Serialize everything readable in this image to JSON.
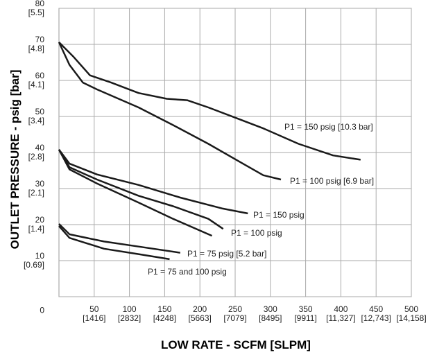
{
  "chart_data": {
    "type": "line",
    "x_label": "LOW RATE - SCFM [SLPM]",
    "y_label": "OUTLET PRESSURE - psig [bar]",
    "xlim": [
      0,
      500
    ],
    "ylim": [
      0,
      80
    ],
    "xticks": [
      {
        "value": 50,
        "label": "50\n[1416]"
      },
      {
        "value": 100,
        "label": "100\n[2832]"
      },
      {
        "value": 150,
        "label": "150\n[4248]"
      },
      {
        "value": 200,
        "label": "200\n[5663]"
      },
      {
        "value": 250,
        "label": "250\n[7079]"
      },
      {
        "value": 300,
        "label": "300\n[8495]"
      },
      {
        "value": 350,
        "label": "350\n[9911]"
      },
      {
        "value": 400,
        "label": "400\n[11,327]"
      },
      {
        "value": 450,
        "label": "450\n[12,743]"
      },
      {
        "value": 500,
        "label": "500\n[14,158]"
      }
    ],
    "yticks": [
      0,
      {
        "value": 10,
        "label": "10\n[0.69]"
      },
      {
        "value": 20,
        "label": "20\n[1.4]"
      },
      {
        "value": 30,
        "label": "30\n[2.1]"
      },
      {
        "value": 40,
        "label": "40\n[2.8]"
      },
      {
        "value": 50,
        "label": "50\n[3.4]"
      },
      {
        "value": 60,
        "label": "60\n[4.1]"
      },
      {
        "value": 70,
        "label": "70\n[4.8]"
      },
      {
        "value": 80,
        "label": "80\n[5.5]"
      }
    ],
    "grid": true,
    "series": [
      {
        "name": "P1 = 150 psig [10.3 bar]",
        "color": "#1a1a1a",
        "x": [
          0,
          20,
          44,
          74,
          113,
          153,
          182,
          212,
          251,
          290,
          340,
          389,
          428
        ],
        "values": [
          70.6,
          66.7,
          61.4,
          59.4,
          56.5,
          54.9,
          54.5,
          52.5,
          49.6,
          46.7,
          42.4,
          39.2,
          38
        ]
      },
      {
        "name": "P1 = 100 psig [6.9 bar]",
        "color": "#1a1a1a",
        "x": [
          0,
          15,
          34,
          54,
          113,
          162,
          212,
          261,
          290,
          315
        ],
        "values": [
          70.6,
          64.3,
          59.4,
          57.5,
          52.5,
          47.6,
          42.4,
          36.9,
          33.7,
          32.5
        ]
      },
      {
        "name": "P1 = 150 psig",
        "color": "#1a1a1a",
        "x": [
          0,
          15,
          54,
          113,
          172,
          231,
          268
        ],
        "values": [
          40.8,
          36.9,
          33.9,
          31,
          27.5,
          24.5,
          23.1
        ]
      },
      {
        "name": "P1 = 100 psig",
        "color": "#1a1a1a",
        "x": [
          0,
          15,
          54,
          113,
          162,
          212,
          233
        ],
        "values": [
          40.8,
          35.9,
          32.5,
          28,
          25.1,
          21.6,
          18.8
        ]
      },
      {
        "color": "#1a1a1a",
        "x": [
          0,
          15,
          54,
          113,
          162,
          217
        ],
        "values": [
          40.8,
          35.3,
          31.4,
          26.1,
          21.6,
          16.9
        ]
      },
      {
        "name": "P1 = 75 psig [5.2 bar]",
        "color": "#1a1a1a",
        "x": [
          0,
          15,
          64,
          113,
          172
        ],
        "values": [
          20.2,
          17.3,
          15.3,
          13.9,
          12.2
        ]
      },
      {
        "name": "P1 = 75 and 100 psig",
        "color": "#1a1a1a",
        "x": [
          0,
          15,
          64,
          113,
          157
        ],
        "values": [
          19.6,
          16.3,
          13.3,
          11.8,
          10.4
        ]
      }
    ]
  }
}
